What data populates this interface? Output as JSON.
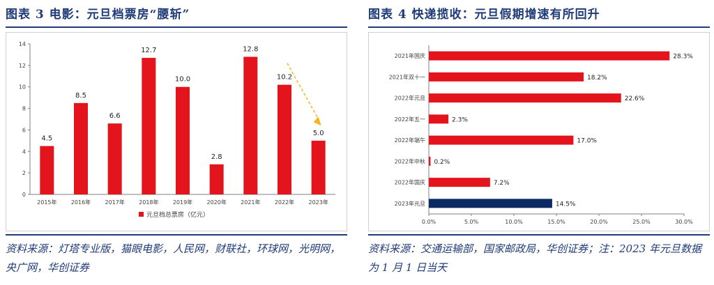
{
  "left": {
    "title": "图表 3   电影：元旦档票房“腰斩”",
    "source": "资料来源：灯塔专业版，猫眼电影，人民网，财联社，环球网，光明网，央广网，华创证券"
  },
  "right": {
    "title": "图表 4   快递揽收：元旦假期增速有所回升",
    "source": "资料来源：交通运输部，国家邮政局，华创证券；注：2023 年元旦数据为 1 月 1 日当天"
  },
  "colors": {
    "red": "#e3141b",
    "navy": "#0b2a63",
    "arrow": "#f5b81c",
    "title": "#1f3b78"
  },
  "chart_data": [
    {
      "type": "bar",
      "categories": [
        "2015年",
        "2016年",
        "2017年",
        "2018年",
        "2019年",
        "2020年",
        "2021年",
        "2022年",
        "2023年"
      ],
      "series": [
        {
          "name": "元旦档总票房（亿元）",
          "values": [
            4.5,
            8.5,
            6.6,
            12.7,
            10.0,
            2.8,
            12.8,
            10.2,
            5.0
          ]
        }
      ],
      "data_labels": [
        "4.5",
        "8.5",
        "6.6",
        "12.7",
        "10.0",
        "2.8",
        "12.8",
        "10.2",
        "5.0"
      ],
      "ylim": [
        0,
        14
      ],
      "yticks": [
        "0",
        "2",
        "4",
        "6",
        "8",
        "10",
        "12",
        "14"
      ],
      "legend": "bottom",
      "annotation": "dashed arrow from 2022年 down to 2023年"
    },
    {
      "type": "bar",
      "orientation": "horizontal",
      "categories": [
        "2021年国庆",
        "2021年双十一",
        "2022年元旦",
        "2022年五一",
        "2022年端午",
        "2022年中秋",
        "2022年国庆",
        "2023年元旦"
      ],
      "values": [
        28.3,
        18.2,
        22.6,
        2.3,
        17.0,
        0.2,
        7.2,
        14.5
      ],
      "data_labels": [
        "28.3%",
        "18.2%",
        "22.6%",
        "2.3%",
        "17.0%",
        "0.2%",
        "7.2%",
        "14.5%"
      ],
      "highlight_category": "2023年元旦",
      "xlim": [
        0,
        30
      ],
      "xticks": [
        "0.0%",
        "5.0%",
        "10.0%",
        "15.0%",
        "20.0%",
        "25.0%",
        "30.0%"
      ]
    }
  ]
}
